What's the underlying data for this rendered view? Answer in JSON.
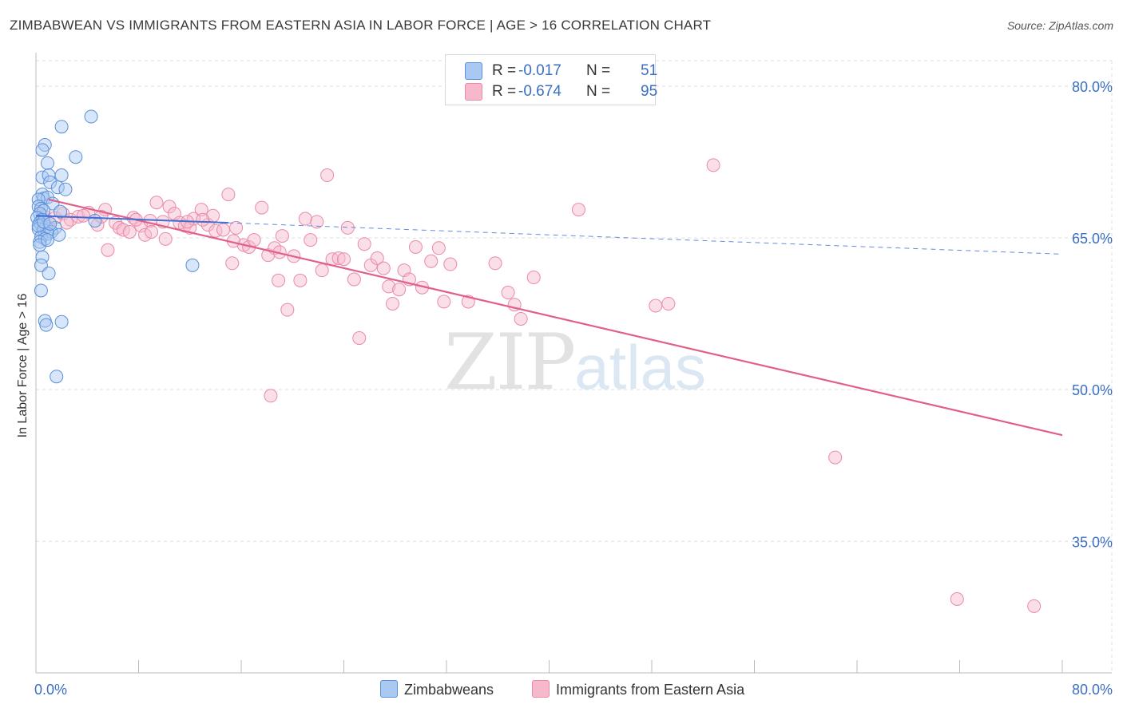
{
  "title": "ZIMBABWEAN VS IMMIGRANTS FROM EASTERN ASIA IN LABOR FORCE | AGE > 16 CORRELATION CHART",
  "source": "Source: ZipAtlas.com",
  "watermark": {
    "zip": "ZIP",
    "atlas": "atlas"
  },
  "legend_top": [
    {
      "r_label": "R =",
      "r_value": "-0.017",
      "n_label": "N =",
      "n_value": "51"
    },
    {
      "r_label": "R =",
      "r_value": "-0.674",
      "n_label": "N =",
      "n_value": "95"
    }
  ],
  "colors": {
    "blue_fill": "#a9c8f2",
    "blue_stroke": "#5b8fd8",
    "blue_line": "#3d6fd6",
    "pink_fill": "#f6b9cc",
    "pink_stroke": "#e98aa8",
    "pink_line": "#e0608a",
    "grid": "#dddddd",
    "tick_label": "#3a6fc4"
  },
  "chart_data": {
    "type": "scatter",
    "title": "ZIMBABWEAN VS IMMIGRANTS FROM EASTERN ASIA IN LABOR FORCE | AGE > 16 CORRELATION CHART",
    "xlabel": "",
    "ylabel": "In Labor Force | Age > 16",
    "xlim": [
      0,
      80
    ],
    "ylim": [
      22,
      83
    ],
    "x_tick_labels": [
      "0.0%",
      "80.0%"
    ],
    "y_ticks": [
      35,
      50,
      65,
      80
    ],
    "y_tick_labels": [
      "35.0%",
      "50.0%",
      "65.0%",
      "80.0%"
    ],
    "grid": true,
    "legend_position": "top-center",
    "series": [
      {
        "name": "Zimbabweans",
        "r": -0.017,
        "n": 51,
        "trend": {
          "x": [
            0,
            15
          ],
          "y": [
            67.2,
            66.5
          ]
        },
        "trend_extension": {
          "x": [
            15,
            80
          ],
          "y": [
            66.5,
            63.4
          ]
        },
        "points": [
          [
            4.3,
            77.0
          ],
          [
            2.0,
            76.0
          ],
          [
            0.7,
            74.2
          ],
          [
            0.5,
            73.7
          ],
          [
            3.1,
            73.0
          ],
          [
            0.9,
            72.4
          ],
          [
            0.5,
            71.0
          ],
          [
            1.0,
            71.2
          ],
          [
            2.0,
            71.2
          ],
          [
            1.1,
            70.5
          ],
          [
            1.7,
            70.0
          ],
          [
            2.3,
            69.8
          ],
          [
            0.5,
            69.3
          ],
          [
            0.6,
            68.9
          ],
          [
            0.9,
            69.0
          ],
          [
            0.2,
            68.8
          ],
          [
            1.3,
            68.4
          ],
          [
            0.2,
            68.1
          ],
          [
            0.4,
            67.9
          ],
          [
            0.6,
            67.7
          ],
          [
            1.9,
            67.6
          ],
          [
            0.3,
            67.4
          ],
          [
            0.1,
            67.0
          ],
          [
            0.5,
            66.8
          ],
          [
            4.6,
            66.7
          ],
          [
            0.3,
            66.5
          ],
          [
            0.4,
            66.3
          ],
          [
            0.8,
            66.1
          ],
          [
            1.5,
            66.0
          ],
          [
            0.2,
            65.9
          ],
          [
            0.6,
            65.8
          ],
          [
            1.2,
            65.6
          ],
          [
            0.9,
            65.4
          ],
          [
            1.8,
            65.3
          ],
          [
            0.4,
            65.1
          ],
          [
            0.7,
            64.9
          ],
          [
            0.3,
            64.6
          ],
          [
            0.5,
            63.1
          ],
          [
            0.4,
            62.3
          ],
          [
            1.0,
            61.5
          ],
          [
            0.4,
            59.8
          ],
          [
            12.2,
            62.3
          ],
          [
            0.7,
            56.8
          ],
          [
            2.0,
            56.7
          ],
          [
            0.8,
            56.4
          ],
          [
            1.6,
            51.3
          ],
          [
            0.2,
            66.2
          ],
          [
            0.6,
            66.6
          ],
          [
            1.1,
            66.4
          ],
          [
            0.3,
            64.3
          ],
          [
            0.9,
            64.8
          ]
        ]
      },
      {
        "name": "Immigrants from Eastern Asia",
        "r": -0.674,
        "n": 95,
        "trend": {
          "x": [
            1,
            80
          ],
          "y": [
            68.8,
            45.5
          ]
        },
        "points": [
          [
            0.6,
            67.2
          ],
          [
            1.0,
            66.6
          ],
          [
            1.5,
            67.0
          ],
          [
            2.1,
            67.4
          ],
          [
            2.7,
            66.8
          ],
          [
            3.3,
            67.1
          ],
          [
            4.1,
            67.5
          ],
          [
            4.8,
            66.3
          ],
          [
            5.4,
            67.8
          ],
          [
            5.6,
            63.8
          ],
          [
            6.2,
            66.5
          ],
          [
            6.5,
            66.0
          ],
          [
            6.8,
            65.8
          ],
          [
            7.3,
            65.6
          ],
          [
            7.6,
            67.0
          ],
          [
            8.2,
            66.2
          ],
          [
            8.5,
            65.3
          ],
          [
            8.9,
            66.7
          ],
          [
            9.4,
            68.5
          ],
          [
            9.9,
            66.6
          ],
          [
            10.1,
            64.9
          ],
          [
            10.4,
            68.1
          ],
          [
            10.8,
            67.4
          ],
          [
            11.2,
            66.5
          ],
          [
            11.6,
            66.2
          ],
          [
            12.0,
            66.0
          ],
          [
            12.3,
            66.9
          ],
          [
            12.9,
            67.8
          ],
          [
            13.4,
            66.3
          ],
          [
            13.8,
            67.2
          ],
          [
            14.0,
            65.7
          ],
          [
            14.6,
            65.8
          ],
          [
            15.0,
            69.3
          ],
          [
            15.3,
            62.5
          ],
          [
            15.6,
            66.0
          ],
          [
            16.2,
            64.3
          ],
          [
            16.6,
            64.1
          ],
          [
            17.0,
            64.8
          ],
          [
            17.6,
            68.0
          ],
          [
            18.1,
            63.3
          ],
          [
            18.6,
            64.0
          ],
          [
            18.9,
            60.8
          ],
          [
            19.2,
            65.2
          ],
          [
            19.6,
            57.9
          ],
          [
            20.1,
            63.2
          ],
          [
            20.6,
            60.8
          ],
          [
            21.0,
            66.9
          ],
          [
            21.4,
            64.8
          ],
          [
            21.9,
            66.6
          ],
          [
            22.3,
            61.8
          ],
          [
            22.7,
            71.2
          ],
          [
            23.1,
            62.9
          ],
          [
            23.6,
            63.0
          ],
          [
            24.3,
            66.0
          ],
          [
            24.8,
            60.9
          ],
          [
            25.6,
            64.4
          ],
          [
            26.1,
            62.3
          ],
          [
            26.6,
            63.0
          ],
          [
            27.1,
            62.0
          ],
          [
            27.5,
            60.2
          ],
          [
            27.8,
            58.5
          ],
          [
            28.3,
            59.9
          ],
          [
            28.7,
            61.8
          ],
          [
            29.1,
            60.9
          ],
          [
            29.6,
            64.1
          ],
          [
            30.1,
            60.1
          ],
          [
            30.8,
            62.7
          ],
          [
            31.4,
            64.0
          ],
          [
            31.8,
            58.7
          ],
          [
            32.3,
            62.4
          ],
          [
            33.7,
            58.7
          ],
          [
            35.8,
            62.5
          ],
          [
            36.8,
            59.6
          ],
          [
            37.3,
            58.4
          ],
          [
            37.8,
            57.0
          ],
          [
            38.8,
            61.1
          ],
          [
            42.3,
            67.8
          ],
          [
            48.3,
            58.3
          ],
          [
            49.3,
            58.5
          ],
          [
            52.8,
            72.2
          ],
          [
            62.3,
            43.3
          ],
          [
            71.8,
            29.3
          ],
          [
            77.8,
            28.6
          ],
          [
            7.8,
            66.8
          ],
          [
            9.0,
            65.6
          ],
          [
            11.8,
            66.6
          ],
          [
            13.0,
            66.8
          ],
          [
            15.4,
            64.7
          ],
          [
            19.0,
            63.6
          ],
          [
            25.2,
            55.1
          ],
          [
            18.3,
            49.4
          ],
          [
            5.1,
            67.1
          ],
          [
            3.7,
            67.2
          ],
          [
            24.0,
            62.9
          ],
          [
            2.4,
            66.5
          ]
        ]
      }
    ]
  },
  "legend_bottom": [
    {
      "label": "Zimbabweans"
    },
    {
      "label": "Immigrants from Eastern Asia"
    }
  ]
}
